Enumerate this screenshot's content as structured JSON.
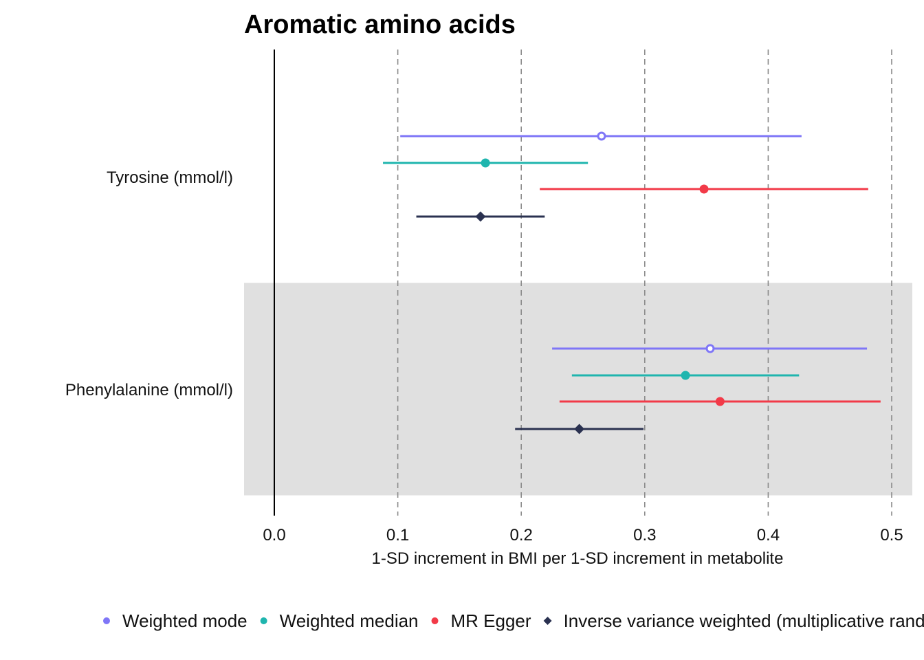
{
  "chart_data": {
    "type": "scatter",
    "subtype": "forest-plot",
    "title": "Aromatic amino acids",
    "xlabel": "1-SD increment in BMI per 1-SD increment in metabolite",
    "ylabel": "",
    "xlim": [
      -0.025,
      0.517
    ],
    "xticks": [
      0.0,
      0.1,
      0.2,
      0.3,
      0.4,
      0.5
    ],
    "xtick_labels": [
      "0.0",
      "0.1",
      "0.2",
      "0.3",
      "0.4",
      "0.5"
    ],
    "reference_line": 0,
    "grid": "vertical dashed at ticks",
    "legend_position": "bottom",
    "categories": [
      "Tyrosine (mmol/l)",
      "Phenylalanine (mmol/l)"
    ],
    "series": [
      {
        "name": "Weighted mode",
        "color": "#7F76F7",
        "marker": "open-circle",
        "values": [
          {
            "category": "Tyrosine (mmol/l)",
            "estimate": 0.265,
            "lower": 0.102,
            "upper": 0.427
          },
          {
            "category": "Phenylalanine (mmol/l)",
            "estimate": 0.353,
            "lower": 0.225,
            "upper": 0.48
          }
        ]
      },
      {
        "name": "Weighted median",
        "color": "#1FB5AE",
        "marker": "circle",
        "values": [
          {
            "category": "Tyrosine (mmol/l)",
            "estimate": 0.171,
            "lower": 0.088,
            "upper": 0.254
          },
          {
            "category": "Phenylalanine (mmol/l)",
            "estimate": 0.333,
            "lower": 0.241,
            "upper": 0.425
          }
        ]
      },
      {
        "name": "MR Egger",
        "color": "#F23A48",
        "marker": "circle",
        "values": [
          {
            "category": "Tyrosine (mmol/l)",
            "estimate": 0.348,
            "lower": 0.215,
            "upper": 0.481
          },
          {
            "category": "Phenylalanine (mmol/l)",
            "estimate": 0.361,
            "lower": 0.231,
            "upper": 0.491
          }
        ]
      },
      {
        "name": "Inverse variance weighted (multiplicative random effects)",
        "color": "#2A3150",
        "marker": "diamond",
        "values": [
          {
            "category": "Tyrosine (mmol/l)",
            "estimate": 0.167,
            "lower": 0.115,
            "upper": 0.219
          },
          {
            "category": "Phenylalanine (mmol/l)",
            "estimate": 0.247,
            "lower": 0.195,
            "upper": 0.299
          }
        ]
      }
    ]
  },
  "legend": {
    "items": [
      {
        "label": "Weighted mode",
        "color": "#7F76F7",
        "marker": "circle"
      },
      {
        "label": "Weighted median",
        "color": "#1FB5AE",
        "marker": "circle"
      },
      {
        "label": "MR Egger",
        "color": "#F23A48",
        "marker": "circle"
      },
      {
        "label": "Inverse variance weighted (multiplicative random effects)",
        "color": "#2A3150",
        "marker": "diamond"
      }
    ]
  },
  "colors": {
    "band": "#E0E0E0",
    "gridline": "#8A8A8A",
    "reference_line": "#000000"
  }
}
